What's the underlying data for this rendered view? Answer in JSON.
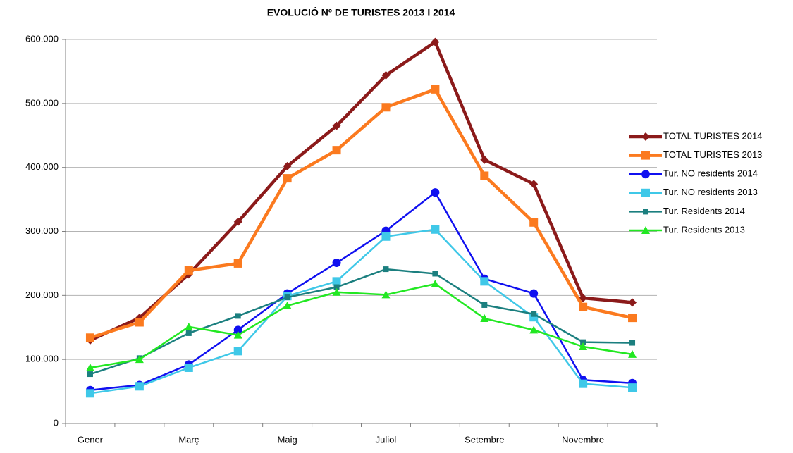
{
  "chart_data": {
    "type": "line",
    "title": "EVOLUCIÓ Nº DE TURISTES 2013 I 2014",
    "categories": [
      "Gener",
      null,
      "Març",
      null,
      "Maig",
      null,
      "Juliol",
      null,
      "Setembre",
      null,
      "Novembre",
      null
    ],
    "series": [
      {
        "name": "TOTAL TURISTES 2014",
        "color": "#8b1a1a",
        "marker": "diamond",
        "values": [
          130000,
          165000,
          233000,
          315000,
          402000,
          465000,
          544000,
          596000,
          412000,
          374000,
          196000,
          189000
        ]
      },
      {
        "name": "TOTAL TURISTES 2013",
        "color": "#fb7a1f",
        "marker": "square",
        "values": [
          134000,
          158000,
          239000,
          250000,
          383000,
          427000,
          494000,
          522000,
          387000,
          314000,
          182000,
          165000
        ]
      },
      {
        "name": "Tur. NO residents 2014",
        "color": "#1010f0",
        "marker": "circle",
        "values": [
          52000,
          60000,
          92000,
          146000,
          203000,
          251000,
          301000,
          361000,
          226000,
          203000,
          68000,
          63000
        ]
      },
      {
        "name": "Tur. NO residents 2013",
        "color": "#3fc8e8",
        "marker": "square",
        "values": [
          47000,
          58000,
          87000,
          113000,
          199000,
          222000,
          292000,
          303000,
          222000,
          166000,
          62000,
          56000
        ]
      },
      {
        "name": "Tur. Residents 2014",
        "color": "#1b7f7f",
        "marker": "small-square",
        "values": [
          77000,
          102000,
          141000,
          168000,
          197000,
          213000,
          241000,
          234000,
          185000,
          171000,
          127000,
          126000
        ]
      },
      {
        "name": "Tur. Residents 2013",
        "color": "#22e822",
        "marker": "triangle",
        "values": [
          87000,
          100000,
          151000,
          138000,
          184000,
          205000,
          201000,
          218000,
          164000,
          146000,
          120000,
          108000
        ]
      }
    ],
    "ylim": [
      0,
      600000
    ],
    "yticks": [
      0,
      {
        "value": 100000,
        "label": "100.000"
      },
      {
        "value": 200000,
        "label": "200.000"
      },
      {
        "value": 300000,
        "label": "300.000"
      },
      {
        "value": 400000,
        "label": "400.000"
      },
      {
        "value": 500000,
        "label": "500.000"
      },
      {
        "value": 600000,
        "label": "600.000"
      }
    ],
    "grid": true,
    "legend": "right"
  }
}
